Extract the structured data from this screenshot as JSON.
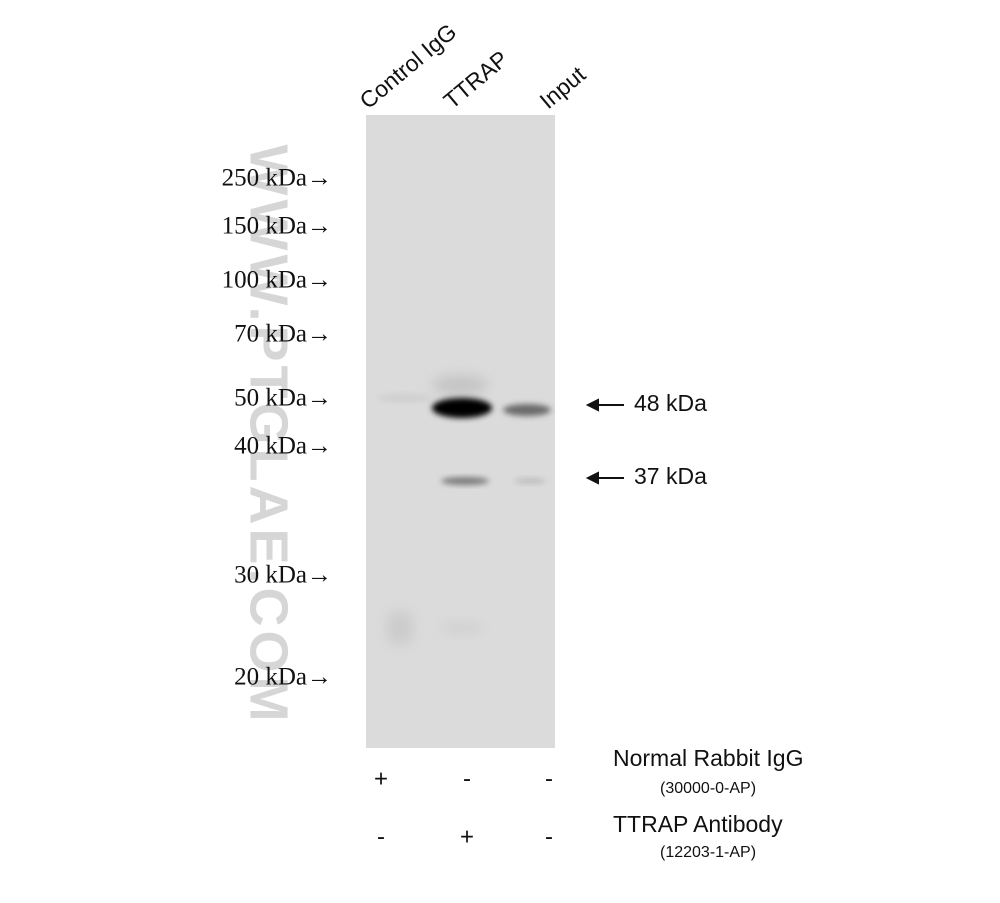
{
  "lanes": [
    "Control IgG",
    "TTRAP",
    "Input"
  ],
  "markers": [
    "250 kDa→",
    "150 kDa→",
    "100 kDa→",
    "70 kDa→",
    "50 kDa→",
    "40 kDa→",
    "30 kDa→",
    "20 kDa→"
  ],
  "bands": [
    "48 kDa",
    "37 kDa"
  ],
  "treatments": [
    {
      "name": "Normal Rabbit IgG",
      "catalog": "(30000-0-AP)",
      "signs": [
        "+",
        "-",
        "-"
      ]
    },
    {
      "name": "TTRAP Antibody",
      "catalog": "(12203-1-AP)",
      "signs": [
        "-",
        "+",
        "-"
      ]
    }
  ],
  "watermark": "WWW.PTGLAE.COM"
}
